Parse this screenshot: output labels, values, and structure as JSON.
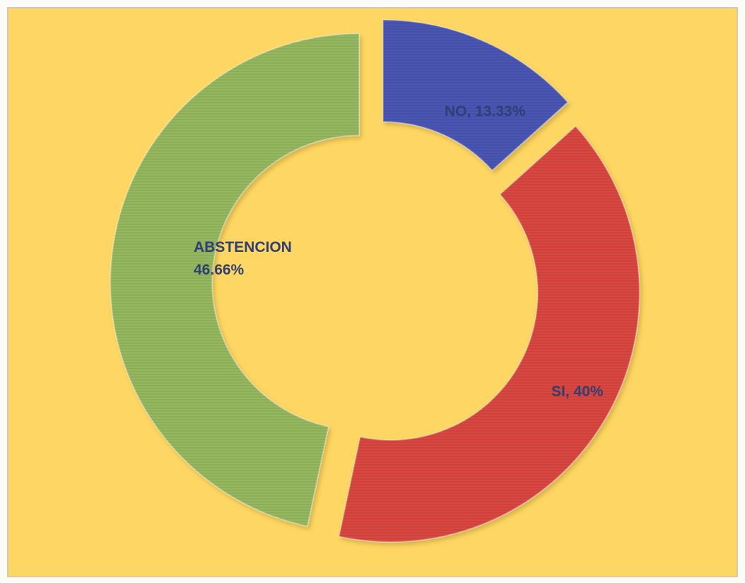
{
  "chart_data": {
    "type": "pie",
    "variant": "exploded-doughnut",
    "title": "",
    "slices": [
      {
        "name": "NO",
        "label": "NO, 13.33%",
        "value": 13.33,
        "color": "#4a57b3"
      },
      {
        "name": "SI",
        "label": "SI, 40%",
        "value": 40,
        "color": "#d9473f"
      },
      {
        "name": "ABSTENCION",
        "label_lines": [
          "ABSTENCION",
          "46.66%"
        ],
        "value": 46.66,
        "color": "#95b85e"
      }
    ],
    "legend": "none",
    "background_color": "#fdd663"
  }
}
